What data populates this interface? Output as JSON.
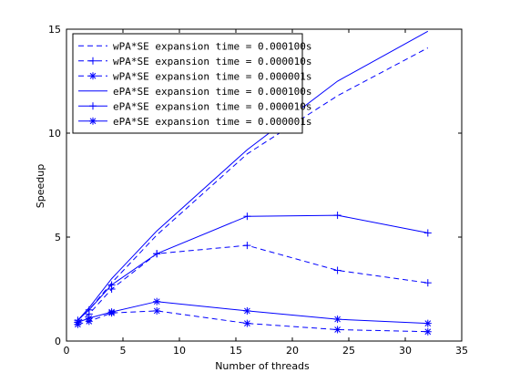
{
  "chart_data": {
    "type": "line",
    "title": "",
    "xlabel": "Number of threads",
    "ylabel": "Speedup",
    "xlim": [
      0,
      35
    ],
    "ylim": [
      0,
      15
    ],
    "xticks": [
      0,
      5,
      10,
      15,
      20,
      25,
      30,
      35
    ],
    "yticks": [
      0,
      5,
      10,
      15
    ],
    "xtick_labels": [
      "0",
      "5",
      "10",
      "15",
      "20",
      "25",
      "30",
      "35"
    ],
    "ytick_labels": [
      "0",
      "5",
      "10",
      "15"
    ],
    "grid": false,
    "legend_position": "top-left",
    "line_color": "#0000ff",
    "series": [
      {
        "name": "wPA*SE expansion time = 0.000100s",
        "dash": "dashed",
        "marker": "none",
        "x": [
          1,
          2,
          4,
          8,
          16,
          24,
          32
        ],
        "y": [
          1.0,
          1.5,
          2.8,
          5.1,
          9.0,
          11.8,
          14.1
        ]
      },
      {
        "name": "wPA*SE expansion time = 0.000010s",
        "dash": "dashed",
        "marker": "plus",
        "x": [
          1,
          2,
          4,
          8,
          16,
          24,
          32
        ],
        "y": [
          0.9,
          1.3,
          2.5,
          4.2,
          4.6,
          3.4,
          2.8
        ]
      },
      {
        "name": "wPA*SE expansion time = 0.000001s",
        "dash": "dashed",
        "marker": "star",
        "x": [
          1,
          2,
          4,
          8,
          16,
          24,
          32
        ],
        "y": [
          0.8,
          0.95,
          1.35,
          1.45,
          0.85,
          0.55,
          0.45
        ]
      },
      {
        "name": "ePA*SE expansion time = 0.000100s",
        "dash": "solid",
        "marker": "none",
        "x": [
          1,
          2,
          4,
          8,
          16,
          24,
          32
        ],
        "y": [
          1.0,
          1.6,
          3.0,
          5.3,
          9.2,
          12.5,
          14.9
        ]
      },
      {
        "name": "ePA*SE expansion time = 0.000010s",
        "dash": "solid",
        "marker": "plus",
        "x": [
          1,
          2,
          4,
          8,
          16,
          24,
          32
        ],
        "y": [
          1.0,
          1.5,
          2.7,
          4.2,
          6.0,
          6.05,
          5.2
        ]
      },
      {
        "name": "ePA*SE expansion time = 0.000001s",
        "dash": "solid",
        "marker": "star",
        "x": [
          1,
          2,
          4,
          8,
          16,
          24,
          32
        ],
        "y": [
          0.9,
          1.1,
          1.4,
          1.9,
          1.45,
          1.05,
          0.85
        ]
      }
    ]
  }
}
